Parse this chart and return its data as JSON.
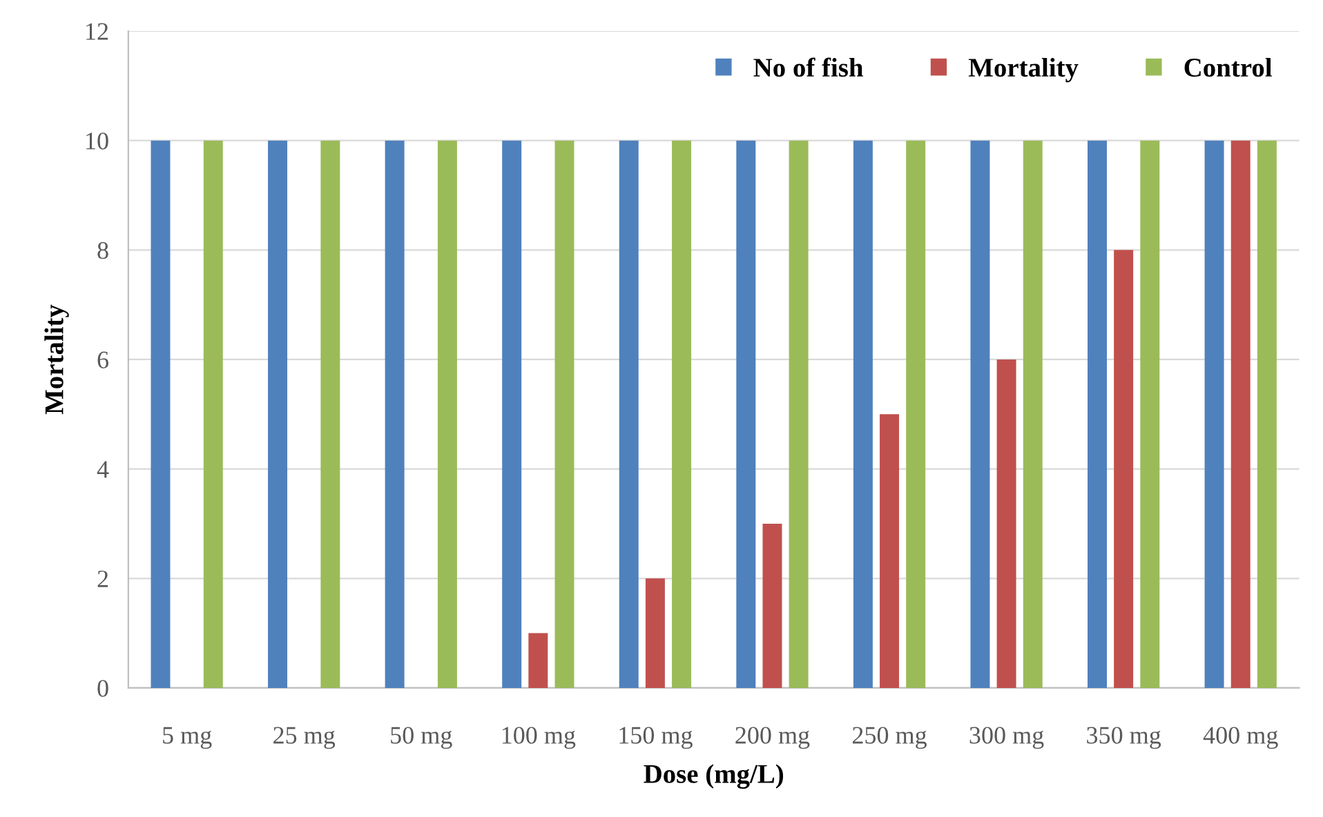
{
  "chart_data": {
    "type": "bar",
    "xlabel": "Dose (mg/L)",
    "ylabel": "Mortality",
    "categories": [
      "5 mg",
      "25 mg",
      "50 mg",
      "100 mg",
      "150 mg",
      "200 mg",
      "250 mg",
      "300 mg",
      "350 mg",
      "400 mg"
    ],
    "series": [
      {
        "name": "No of fish",
        "color": "#4f81bd",
        "values": [
          10,
          10,
          10,
          10,
          10,
          10,
          10,
          10,
          10,
          10
        ]
      },
      {
        "name": "Mortality",
        "color": "#c0504d",
        "values": [
          0,
          0,
          0,
          1,
          2,
          3,
          5,
          6,
          8,
          10
        ]
      },
      {
        "name": "Control",
        "color": "#9bbb59",
        "values": [
          10,
          10,
          10,
          10,
          10,
          10,
          10,
          10,
          10,
          10
        ]
      }
    ],
    "ylim": [
      0,
      12
    ],
    "yticks": [
      0,
      2,
      4,
      6,
      8,
      10,
      12
    ],
    "grid": "y",
    "legend": "top right"
  }
}
